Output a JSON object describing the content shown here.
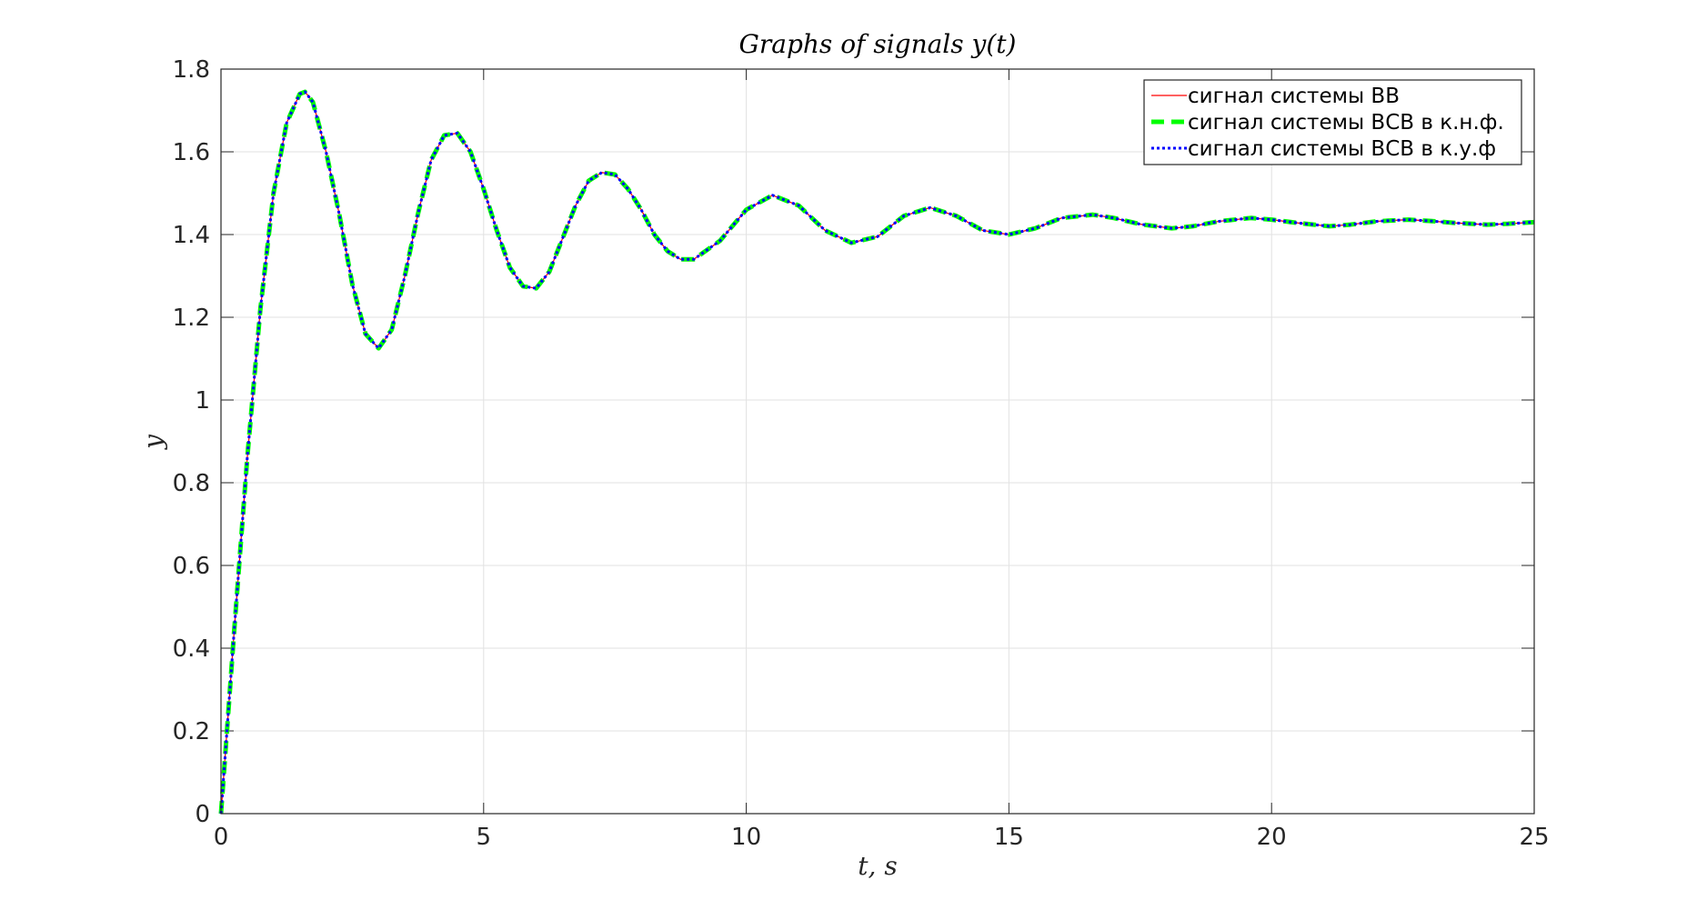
{
  "chart_data": {
    "type": "line",
    "title": "Graphs of signals y(t)",
    "xlabel": "t, s",
    "ylabel": "y",
    "xlim": [
      0,
      25
    ],
    "ylim": [
      0,
      1.8
    ],
    "x_ticks": [
      0,
      5,
      10,
      15,
      20,
      25
    ],
    "y_ticks": [
      0,
      0.2,
      0.4,
      0.6,
      0.8,
      1,
      1.2,
      1.4,
      1.6,
      1.8
    ],
    "x_tick_labels": [
      "0",
      "5",
      "10",
      "15",
      "20",
      "25"
    ],
    "y_tick_labels": [
      "0",
      "0.2",
      "0.4",
      "0.6",
      "0.8",
      "1",
      "1.2",
      "1.4",
      "1.6",
      "1.8"
    ],
    "grid": true,
    "legend_position": "top-right",
    "series": [
      {
        "name": "сигнал системы ВВ",
        "color": "#ff0000",
        "style": "solid",
        "x": [
          0,
          0.25,
          0.5,
          0.75,
          1.0,
          1.25,
          1.5,
          1.6,
          1.75,
          2.0,
          2.25,
          2.5,
          2.75,
          3.0,
          3.25,
          3.5,
          3.75,
          4.0,
          4.25,
          4.5,
          4.75,
          5.0,
          5.25,
          5.5,
          5.75,
          6.0,
          6.25,
          6.5,
          6.75,
          7.0,
          7.25,
          7.5,
          7.75,
          8.0,
          8.25,
          8.5,
          8.75,
          9.0,
          9.5,
          10.0,
          10.5,
          11.0,
          11.5,
          12.0,
          12.5,
          13.0,
          13.5,
          14.0,
          14.5,
          15.0,
          15.5,
          16.0,
          16.6,
          17.0,
          17.5,
          18.1,
          18.5,
          19.0,
          19.6,
          20.0,
          20.5,
          21.1,
          21.5,
          22.0,
          22.6,
          23.0,
          23.5,
          24.1,
          24.5,
          25.0
        ],
        "values": [
          0,
          0.44,
          0.86,
          1.22,
          1.5,
          1.67,
          1.74,
          1.745,
          1.72,
          1.6,
          1.45,
          1.28,
          1.16,
          1.125,
          1.17,
          1.3,
          1.45,
          1.58,
          1.64,
          1.645,
          1.6,
          1.51,
          1.41,
          1.32,
          1.275,
          1.27,
          1.31,
          1.39,
          1.47,
          1.53,
          1.55,
          1.545,
          1.51,
          1.46,
          1.4,
          1.36,
          1.34,
          1.34,
          1.385,
          1.46,
          1.495,
          1.47,
          1.41,
          1.38,
          1.395,
          1.445,
          1.465,
          1.445,
          1.41,
          1.4,
          1.415,
          1.44,
          1.448,
          1.44,
          1.425,
          1.415,
          1.42,
          1.432,
          1.44,
          1.436,
          1.428,
          1.42,
          1.424,
          1.432,
          1.436,
          1.433,
          1.428,
          1.424,
          1.426,
          1.43
        ]
      },
      {
        "name": "сигнал системы ВСВ в к.н.ф.",
        "color": "#00ff00",
        "style": "dashed",
        "x": [
          0,
          0.25,
          0.5,
          0.75,
          1.0,
          1.25,
          1.5,
          1.6,
          1.75,
          2.0,
          2.25,
          2.5,
          2.75,
          3.0,
          3.25,
          3.5,
          3.75,
          4.0,
          4.25,
          4.5,
          4.75,
          5.0,
          5.25,
          5.5,
          5.75,
          6.0,
          6.25,
          6.5,
          6.75,
          7.0,
          7.25,
          7.5,
          7.75,
          8.0,
          8.25,
          8.5,
          8.75,
          9.0,
          9.5,
          10.0,
          10.5,
          11.0,
          11.5,
          12.0,
          12.5,
          13.0,
          13.5,
          14.0,
          14.5,
          15.0,
          15.5,
          16.0,
          16.6,
          17.0,
          17.5,
          18.1,
          18.5,
          19.0,
          19.6,
          20.0,
          20.5,
          21.1,
          21.5,
          22.0,
          22.6,
          23.0,
          23.5,
          24.1,
          24.5,
          25.0
        ],
        "values": [
          0,
          0.44,
          0.86,
          1.22,
          1.5,
          1.67,
          1.74,
          1.745,
          1.72,
          1.6,
          1.45,
          1.28,
          1.16,
          1.125,
          1.17,
          1.3,
          1.45,
          1.58,
          1.64,
          1.645,
          1.6,
          1.51,
          1.41,
          1.32,
          1.275,
          1.27,
          1.31,
          1.39,
          1.47,
          1.53,
          1.55,
          1.545,
          1.51,
          1.46,
          1.4,
          1.36,
          1.34,
          1.34,
          1.385,
          1.46,
          1.495,
          1.47,
          1.41,
          1.38,
          1.395,
          1.445,
          1.465,
          1.445,
          1.41,
          1.4,
          1.415,
          1.44,
          1.448,
          1.44,
          1.425,
          1.415,
          1.42,
          1.432,
          1.44,
          1.436,
          1.428,
          1.42,
          1.424,
          1.432,
          1.436,
          1.433,
          1.428,
          1.424,
          1.426,
          1.43
        ]
      },
      {
        "name": "сигнал системы ВСВ в к.у.ф",
        "color": "#0000ff",
        "style": "dotted",
        "x": [
          0,
          0.25,
          0.5,
          0.75,
          1.0,
          1.25,
          1.5,
          1.6,
          1.75,
          2.0,
          2.25,
          2.5,
          2.75,
          3.0,
          3.25,
          3.5,
          3.75,
          4.0,
          4.25,
          4.5,
          4.75,
          5.0,
          5.25,
          5.5,
          5.75,
          6.0,
          6.25,
          6.5,
          6.75,
          7.0,
          7.25,
          7.5,
          7.75,
          8.0,
          8.25,
          8.5,
          8.75,
          9.0,
          9.5,
          10.0,
          10.5,
          11.0,
          11.5,
          12.0,
          12.5,
          13.0,
          13.5,
          14.0,
          14.5,
          15.0,
          15.5,
          16.0,
          16.6,
          17.0,
          17.5,
          18.1,
          18.5,
          19.0,
          19.6,
          20.0,
          20.5,
          21.1,
          21.5,
          22.0,
          22.6,
          23.0,
          23.5,
          24.1,
          24.5,
          25.0
        ],
        "values": [
          0,
          0.44,
          0.86,
          1.22,
          1.5,
          1.67,
          1.74,
          1.745,
          1.72,
          1.6,
          1.45,
          1.28,
          1.16,
          1.125,
          1.17,
          1.3,
          1.45,
          1.58,
          1.64,
          1.645,
          1.6,
          1.51,
          1.41,
          1.32,
          1.275,
          1.27,
          1.31,
          1.39,
          1.47,
          1.53,
          1.55,
          1.545,
          1.51,
          1.46,
          1.4,
          1.36,
          1.34,
          1.34,
          1.385,
          1.46,
          1.495,
          1.47,
          1.41,
          1.38,
          1.395,
          1.445,
          1.465,
          1.445,
          1.41,
          1.4,
          1.415,
          1.44,
          1.448,
          1.44,
          1.425,
          1.415,
          1.42,
          1.432,
          1.44,
          1.436,
          1.428,
          1.42,
          1.424,
          1.432,
          1.436,
          1.433,
          1.428,
          1.424,
          1.426,
          1.43
        ]
      }
    ]
  }
}
